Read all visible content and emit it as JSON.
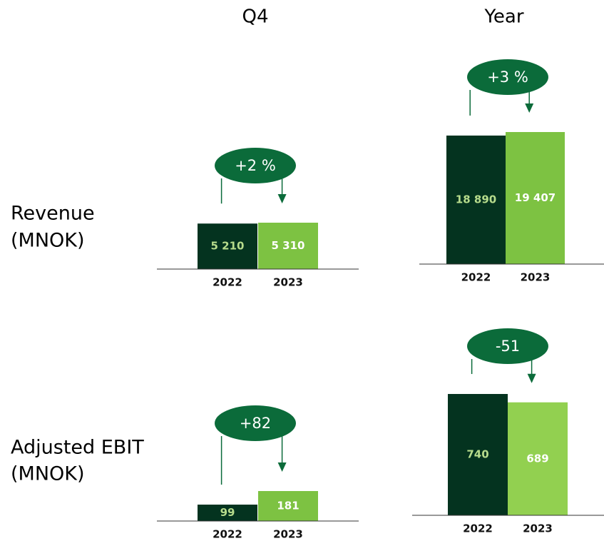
{
  "columns": [
    "Q4",
    "Year"
  ],
  "rows": [
    {
      "label": "Revenue",
      "unit": "(MNOK)"
    },
    {
      "label": "Adjusted EBIT",
      "unit": "(MNOK)"
    }
  ],
  "chart_data": [
    {
      "type": "bar",
      "categories": [
        "2022",
        "2023"
      ],
      "values": [
        5210,
        5310
      ],
      "value_labels": [
        "5 210",
        "5 310"
      ],
      "colors": [
        "#04331f",
        "#7dc242"
      ],
      "annotation": "+2 %"
    },
    {
      "type": "bar",
      "categories": [
        "2022",
        "2023"
      ],
      "values": [
        18890,
        19407
      ],
      "value_labels": [
        "18 890",
        "19 407"
      ],
      "colors": [
        "#04331f",
        "#7dc242"
      ],
      "annotation": "+3 %"
    },
    {
      "type": "bar",
      "categories": [
        "2022",
        "2023"
      ],
      "values": [
        99,
        181
      ],
      "colors": [
        "#04331f",
        "#7dc242"
      ],
      "annotation": "+82"
    },
    {
      "type": "bar",
      "categories": [
        "2022",
        "2023"
      ],
      "values": [
        740,
        689
      ],
      "colors": [
        "#04331f",
        "#92d050"
      ],
      "annotation": "-51"
    }
  ]
}
